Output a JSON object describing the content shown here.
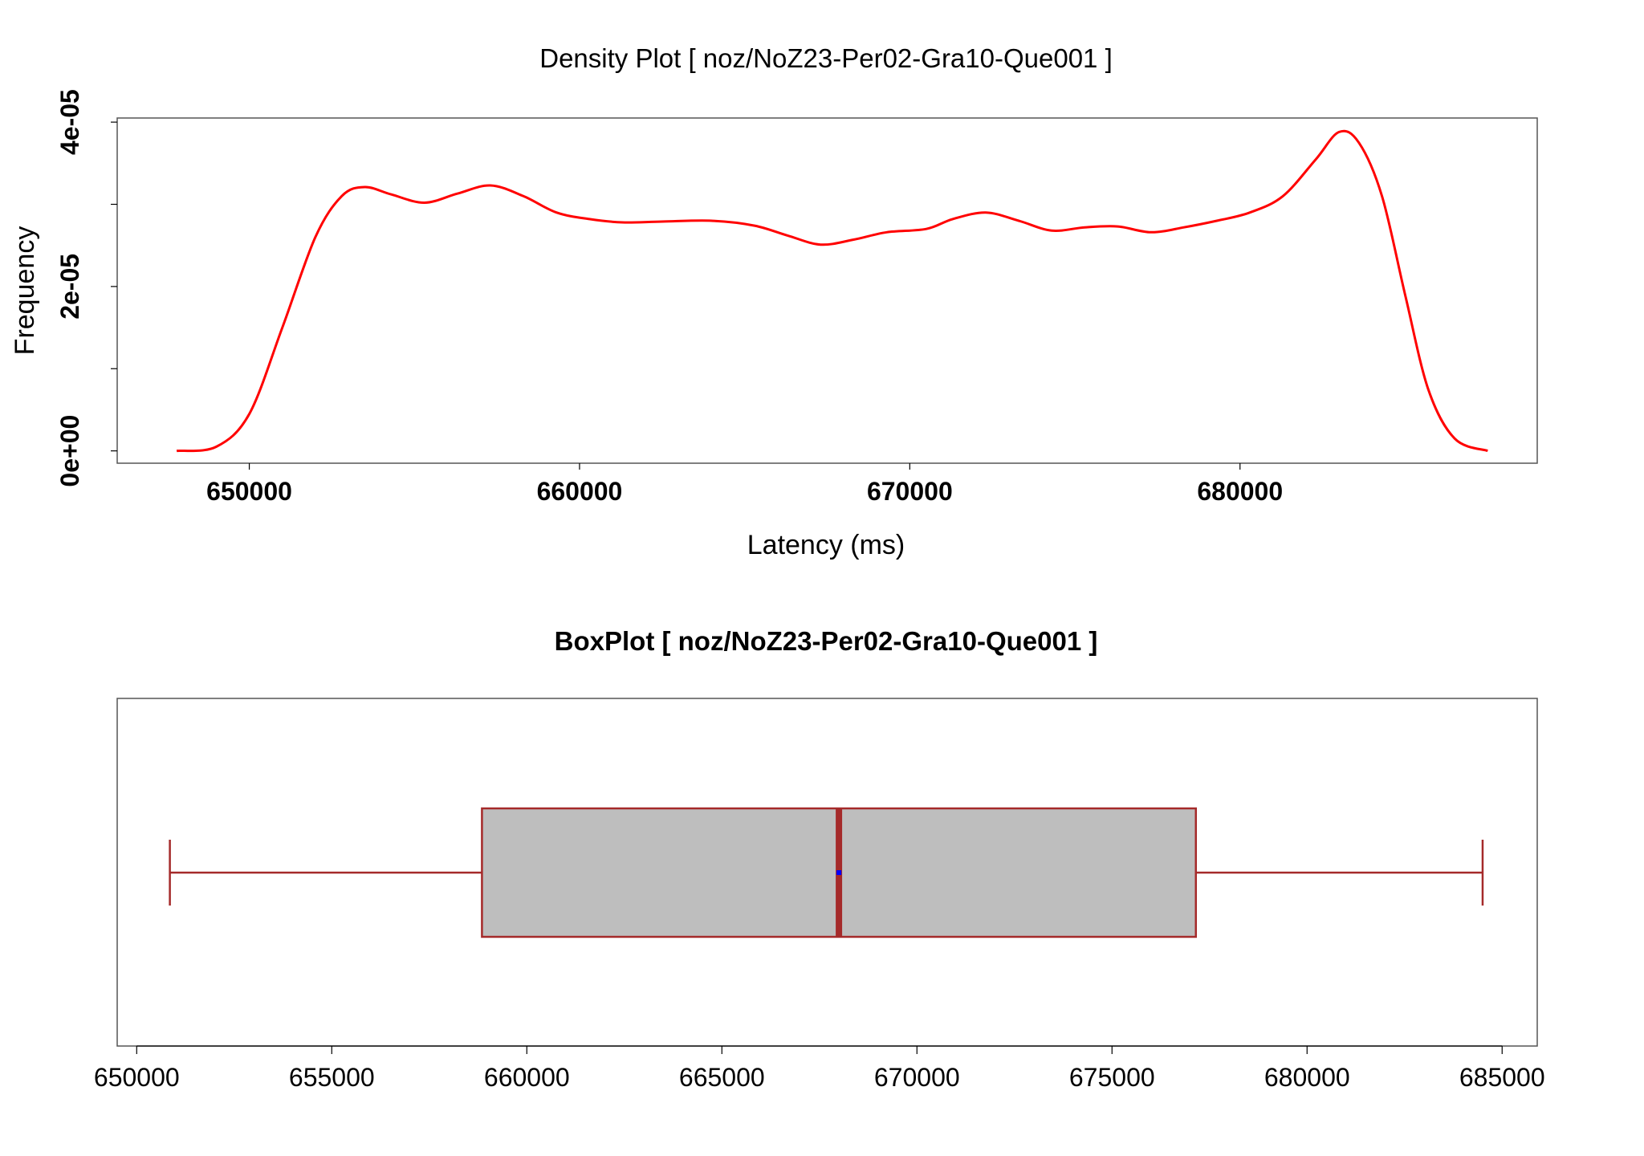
{
  "chart_data": [
    {
      "type": "area",
      "title": "Density Plot [ noz/NoZ23-Per02-Gra10-Que001 ]",
      "xlabel": "Latency (ms)",
      "ylabel": "Frequency",
      "xlim": [
        646000,
        689000
      ],
      "ylim": [
        -1.5e-06,
        4.05e-05
      ],
      "x_ticks": [
        650000,
        660000,
        670000,
        680000
      ],
      "x_tick_labels": [
        "650000",
        "660000",
        "670000",
        "680000"
      ],
      "y_ticks": [
        0,
        1e-05,
        2e-05,
        3e-05,
        4e-05
      ],
      "y_tick_labels": [
        "0e+00",
        "",
        "2e-05",
        "",
        "4e-05"
      ],
      "line_color": "#ff0000",
      "grid": false,
      "series": [
        {
          "x": [
            647800,
            649000,
            650000,
            651000,
            652000,
            652800,
            653500,
            654300,
            655300,
            656300,
            657300,
            658300,
            659300,
            660300,
            661300,
            662500,
            664000,
            665300,
            666300,
            667300,
            668300,
            669300,
            670500,
            671300,
            672300,
            673300,
            674300,
            675300,
            676300,
            677300,
            678300,
            679300,
            680300,
            681300,
            682300,
            683000,
            683600,
            684300,
            685000,
            685700,
            686500,
            687500
          ],
          "y": [
            0.0,
            5e-07,
            4.5e-06,
            1.5e-05,
            2.6e-05,
            3.1e-05,
            3.21e-05,
            3.12e-05,
            3.02e-05,
            3.13e-05,
            3.23e-05,
            3.1e-05,
            2.9e-05,
            2.82e-05,
            2.78e-05,
            2.79e-05,
            2.8e-05,
            2.74e-05,
            2.62e-05,
            2.51e-05,
            2.57e-05,
            2.66e-05,
            2.7e-05,
            2.82e-05,
            2.9e-05,
            2.8e-05,
            2.68e-05,
            2.72e-05,
            2.73e-05,
            2.66e-05,
            2.72e-05,
            2.8e-05,
            2.9e-05,
            3.1e-05,
            3.55e-05,
            3.88e-05,
            3.75e-05,
            3.1e-05,
            1.9e-05,
            7.5e-06,
            1.5e-06,
            0.0
          ]
        }
      ]
    },
    {
      "type": "box",
      "title": "BoxPlot [ noz/NoZ23-Per02-Gra10-Que001 ]",
      "xlim": [
        649500,
        685900
      ],
      "x_ticks": [
        650000,
        655000,
        660000,
        665000,
        670000,
        675000,
        680000,
        685000
      ],
      "x_tick_labels": [
        "650000",
        "655000",
        "660000",
        "665000",
        "670000",
        "675000",
        "680000",
        "685000"
      ],
      "box_fill": "#bebebe",
      "box_stroke": "#a52a2a",
      "mean_color": "#0000ff",
      "stats": {
        "whisker_low": 650850,
        "q1": 658850,
        "median": 668000,
        "q3": 677150,
        "whisker_high": 684500,
        "mean": 668000
      }
    }
  ]
}
